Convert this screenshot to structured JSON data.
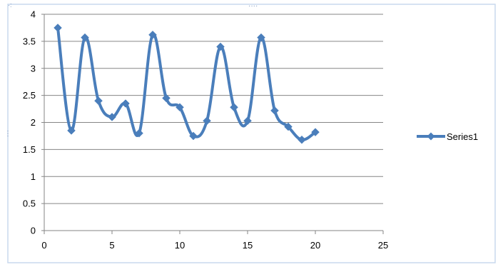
{
  "chart_data": {
    "type": "line",
    "title": "",
    "xlabel": "",
    "ylabel": "",
    "xlim": [
      0,
      25
    ],
    "ylim": [
      0,
      4
    ],
    "x_ticks": [
      0,
      5,
      10,
      15,
      20,
      25
    ],
    "y_ticks": [
      0,
      0.5,
      1,
      1.5,
      2,
      2.5,
      3,
      3.5,
      4
    ],
    "grid": "horizontal",
    "smooth": true,
    "marker": "diamond",
    "legend_position": "right",
    "series": [
      {
        "name": "Series1",
        "color": "#4a7ebb",
        "x": [
          1,
          2,
          3,
          4,
          5,
          6,
          7,
          8,
          9,
          10,
          11,
          12,
          13,
          14,
          15,
          16,
          17,
          18,
          19,
          20
        ],
        "y": [
          3.75,
          1.85,
          3.57,
          2.4,
          2.1,
          2.35,
          1.8,
          3.62,
          2.45,
          2.28,
          1.75,
          2.03,
          3.4,
          2.28,
          2.03,
          3.57,
          2.22,
          1.92,
          1.68,
          1.82
        ]
      }
    ]
  }
}
